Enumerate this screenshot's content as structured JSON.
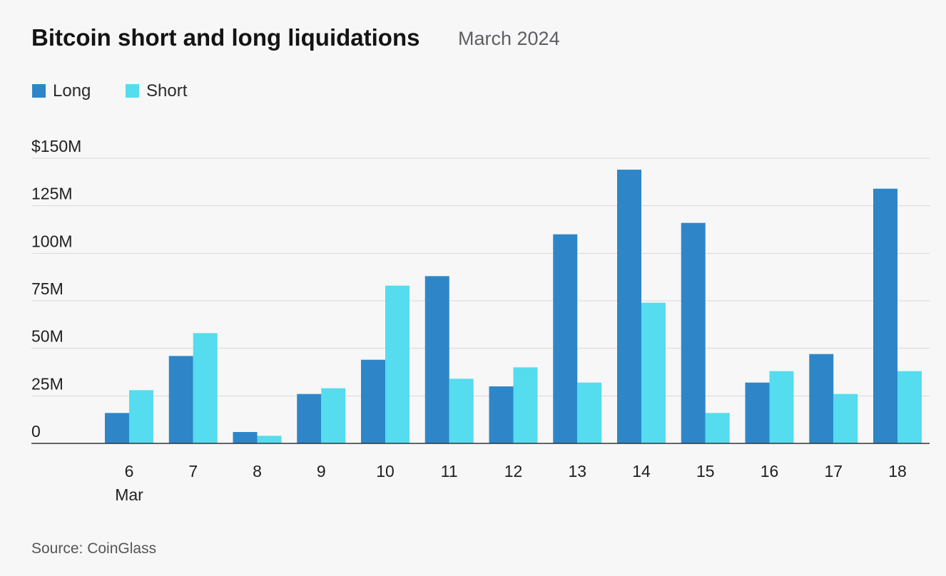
{
  "header": {
    "title": "Bitcoin short and long liquidations",
    "subtitle": "March 2024"
  },
  "source": "Source: CoinGlass",
  "colors": {
    "long": "#2e86c8",
    "short": "#55dcee",
    "grid": "#d9d9d9",
    "axis": "#333333"
  },
  "chart_data": {
    "type": "bar",
    "title": "Bitcoin short and long liquidations",
    "subtitle": "March 2024",
    "categories": [
      "6",
      "7",
      "8",
      "9",
      "10",
      "11",
      "12",
      "13",
      "14",
      "15",
      "16",
      "17",
      "18"
    ],
    "category_sublabel": {
      "index": 0,
      "text": "Mar"
    },
    "series": [
      {
        "name": "Long",
        "values": [
          16,
          46,
          6,
          26,
          44,
          88,
          30,
          110,
          144,
          116,
          32,
          47,
          134
        ]
      },
      {
        "name": "Short",
        "values": [
          28,
          58,
          4,
          29,
          83,
          34,
          40,
          32,
          74,
          16,
          38,
          26,
          38
        ]
      }
    ],
    "yticks": [
      {
        "value": 0,
        "label": "0"
      },
      {
        "value": 25,
        "label": "25M"
      },
      {
        "value": 50,
        "label": "50M"
      },
      {
        "value": 75,
        "label": "75M"
      },
      {
        "value": 100,
        "label": "100M"
      },
      {
        "value": 125,
        "label": "125M"
      },
      {
        "value": 150,
        "label": "$150M"
      }
    ],
    "ylim": [
      0,
      150
    ],
    "xlabel": "",
    "ylabel": "",
    "grid": true,
    "legend": "top-left"
  }
}
